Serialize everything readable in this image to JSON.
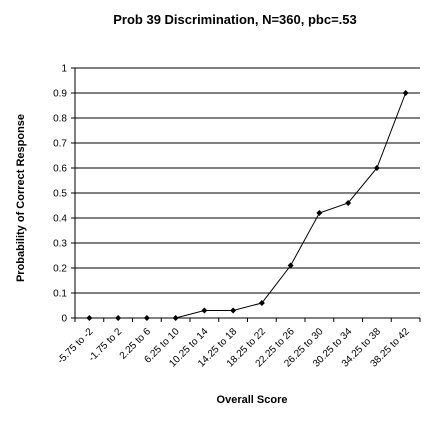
{
  "chart_data": {
    "type": "line",
    "title": "Prob 39 Discrimination, N=360, pbc=.53",
    "xlabel": "Overall Score",
    "ylabel": "Probability of Correct Response",
    "categories": [
      "-5.75 to -2",
      "-1.75 to 2",
      "2.25 to 6",
      "6.25 to 10",
      "10.25 to 14",
      "14.25 to 18",
      "18.25 to 22",
      "22.25 to 26",
      "26.25 to 30",
      "30.25 to 34",
      "34.25 to 38",
      "38.25 to 42"
    ],
    "values": [
      0,
      0,
      0,
      0,
      0.03,
      0.03,
      0.06,
      0.21,
      0.42,
      0.46,
      0.6,
      0.9
    ],
    "ylim": [
      0,
      1
    ],
    "yticks": [
      "0",
      "0.1",
      "0.2",
      "0.3",
      "0.4",
      "0.5",
      "0.6",
      "0.7",
      "0.8",
      "0.9",
      "1"
    ],
    "grid": true,
    "legend": "none"
  }
}
